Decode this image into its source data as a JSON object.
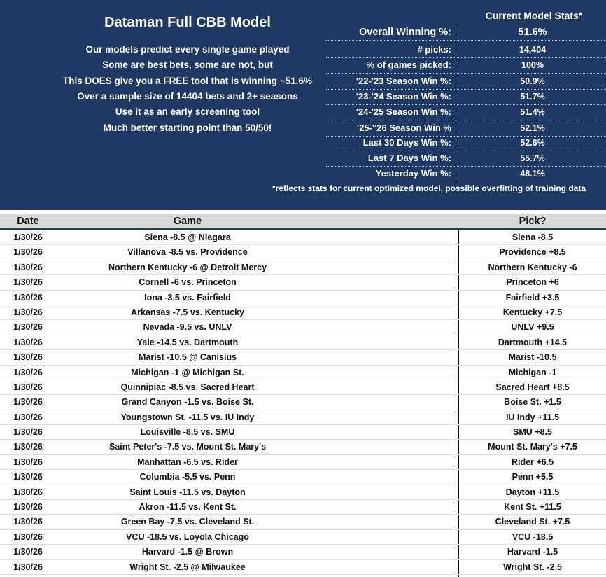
{
  "banner": {
    "title": "Dataman Full CBB Model",
    "pitch_lines": [
      "Our models predict every single game played",
      "Some are best bets, some are not, but",
      "This DOES give you a FREE tool that is winning ~51.6%",
      "Over a sample size of 14404 bets and 2+ seasons",
      "Use it as an early screening tool",
      "Much better starting point than 50/50!"
    ],
    "stats_header": "Current Model Stats*",
    "stats": [
      {
        "label": "Overall Winning %:",
        "value": "51.6%"
      },
      {
        "label": "# picks:",
        "value": "14,404"
      },
      {
        "label": "% of games picked:",
        "value": "100%"
      },
      {
        "label": "'22-'23 Season Win %:",
        "value": "50.9%"
      },
      {
        "label": "'23-'24 Season Win %:",
        "value": "51.7%"
      },
      {
        "label": "'24-'25 Season Win %:",
        "value": "51.4%"
      },
      {
        "label": "'25-''26 Season Win %",
        "value": "52.1%"
      },
      {
        "label": "Last 30 Days Win %:",
        "value": "52.6%"
      },
      {
        "label": "Last 7 Days Win %:",
        "value": "55.7%"
      },
      {
        "label": "Yesterday Win %:",
        "value": "48.1%"
      }
    ],
    "footnote": "*reflects stats for current optimized model, possible overfitting of training data"
  },
  "table": {
    "headers": {
      "date": "Date",
      "game": "Game",
      "pick": "Pick?"
    },
    "rows": [
      {
        "date": "1/30/26",
        "game": "Siena -8.5 @ Niagara",
        "pick": "Siena -8.5"
      },
      {
        "date": "1/30/26",
        "game": "Villanova -8.5 vs. Providence",
        "pick": "Providence +8.5"
      },
      {
        "date": "1/30/26",
        "game": "Northern Kentucky -6 @ Detroit Mercy",
        "pick": "Northern Kentucky -6"
      },
      {
        "date": "1/30/26",
        "game": "Cornell -6 vs. Princeton",
        "pick": "Princeton +6"
      },
      {
        "date": "1/30/26",
        "game": "Iona -3.5 vs. Fairfield",
        "pick": "Fairfield +3.5"
      },
      {
        "date": "1/30/26",
        "game": "Arkansas -7.5 vs. Kentucky",
        "pick": "Kentucky +7.5"
      },
      {
        "date": "1/30/26",
        "game": "Nevada -9.5 vs. UNLV",
        "pick": "UNLV +9.5"
      },
      {
        "date": "1/30/26",
        "game": "Yale -14.5 vs. Dartmouth",
        "pick": "Dartmouth +14.5"
      },
      {
        "date": "1/30/26",
        "game": "Marist -10.5 @ Canisius",
        "pick": "Marist -10.5"
      },
      {
        "date": "1/30/26",
        "game": "Michigan -1 @ Michigan St.",
        "pick": "Michigan -1"
      },
      {
        "date": "1/30/26",
        "game": "Quinnipiac -8.5 vs. Sacred Heart",
        "pick": "Sacred Heart +8.5"
      },
      {
        "date": "1/30/26",
        "game": "Grand Canyon -1.5 vs. Boise St.",
        "pick": "Boise St. +1.5"
      },
      {
        "date": "1/30/26",
        "game": "Youngstown St. -11.5 vs. IU Indy",
        "pick": "IU Indy +11.5"
      },
      {
        "date": "1/30/26",
        "game": "Louisville -8.5 vs. SMU",
        "pick": "SMU +8.5"
      },
      {
        "date": "1/30/26",
        "game": "Saint Peter's -7.5 vs. Mount St. Mary's",
        "pick": "Mount St. Mary's +7.5"
      },
      {
        "date": "1/30/26",
        "game": "Manhattan -6.5 vs. Rider",
        "pick": "Rider +6.5"
      },
      {
        "date": "1/30/26",
        "game": "Columbia -5.5 vs. Penn",
        "pick": "Penn +5.5"
      },
      {
        "date": "1/30/26",
        "game": "Saint Louis -11.5 vs. Dayton",
        "pick": "Dayton +11.5"
      },
      {
        "date": "1/30/26",
        "game": "Akron -11.5 vs. Kent St.",
        "pick": "Kent St. +11.5"
      },
      {
        "date": "1/30/26",
        "game": "Green Bay -7.5 vs. Cleveland St.",
        "pick": "Cleveland St. +7.5"
      },
      {
        "date": "1/30/26",
        "game": "VCU -18.5 vs. Loyola Chicago",
        "pick": "VCU -18.5"
      },
      {
        "date": "1/30/26",
        "game": "Harvard -1.5 @ Brown",
        "pick": "Harvard -1.5"
      },
      {
        "date": "1/30/26",
        "game": "Wright St. -2.5 @ Milwaukee",
        "pick": "Wright St. -2.5"
      }
    ]
  }
}
